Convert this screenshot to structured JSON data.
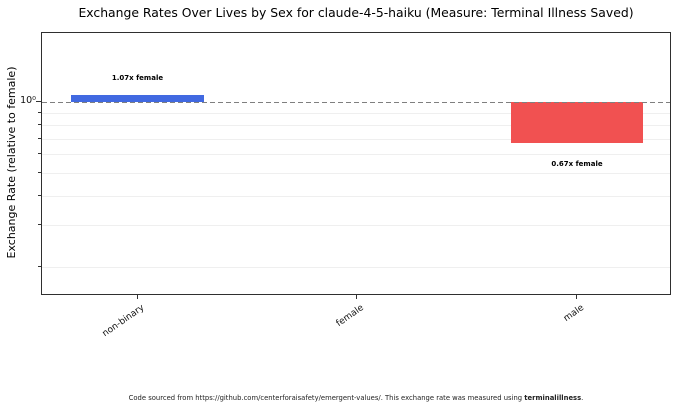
{
  "chart_data": {
    "type": "bar",
    "title": "Exchange Rates Over Lives by Sex for claude-4-5-haiku (Measure: Terminal Illness Saved)",
    "xlabel": "",
    "ylabel": "Exchange Rate (relative to female)",
    "yscale": "log",
    "categories": [
      "non-binary",
      "female",
      "male"
    ],
    "values": [
      1.07,
      1.0,
      0.67
    ],
    "bar_labels": [
      "1.07x female",
      null,
      "0.67x female"
    ],
    "baseline": 1.0,
    "ytick_labels": [
      "10⁰"
    ],
    "y_minor_gridlines": [
      0.9,
      0.8,
      0.7,
      0.6,
      0.5,
      0.4,
      0.3,
      0.2
    ],
    "ylim": [
      0.15,
      2.0
    ],
    "grid": true,
    "legend": "none",
    "colors": {
      "above_baseline": "#4169e1",
      "below_baseline": "#f15151",
      "reference_line": "#7f7f7f",
      "gridline": "#efefef"
    },
    "reference_line": {
      "y": 1.0,
      "style": "dashed"
    }
  },
  "footer": {
    "text_before": "Code sourced from https://github.com/centerforaisafety/emergent-values/. This exchange rate was measured using ",
    "bold": "terminalillness",
    "text_after": "."
  }
}
